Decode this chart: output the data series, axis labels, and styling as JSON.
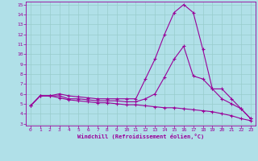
{
  "xlabel": "Windchill (Refroidissement éolien,°C)",
  "background_color": "#b0e0e8",
  "line_color": "#990099",
  "grid_color": "#99cccc",
  "xlim": [
    -0.5,
    23.5
  ],
  "ylim": [
    2.8,
    15.3
  ],
  "yticks": [
    3,
    4,
    5,
    6,
    7,
    8,
    9,
    10,
    11,
    12,
    13,
    14,
    15
  ],
  "xticks": [
    0,
    1,
    2,
    3,
    4,
    5,
    6,
    7,
    8,
    9,
    10,
    11,
    12,
    13,
    14,
    15,
    16,
    17,
    18,
    19,
    20,
    21,
    22,
    23
  ],
  "line1_x": [
    0,
    1,
    2,
    3,
    4,
    5,
    6,
    7,
    8,
    9,
    10,
    11,
    12,
    13,
    14,
    15,
    16,
    17,
    18,
    19,
    20,
    21,
    22,
    23
  ],
  "line1_y": [
    4.8,
    5.8,
    5.8,
    6.0,
    5.8,
    5.7,
    5.6,
    5.5,
    5.5,
    5.5,
    5.5,
    5.5,
    7.5,
    9.5,
    12.0,
    14.2,
    15.0,
    14.2,
    10.5,
    6.5,
    5.5,
    5.0,
    4.5,
    3.5
  ],
  "line2_x": [
    0,
    1,
    2,
    3,
    4,
    5,
    6,
    7,
    8,
    9,
    10,
    11,
    12,
    13,
    14,
    15,
    16,
    17,
    18,
    19,
    20,
    21,
    22,
    23
  ],
  "line2_y": [
    4.8,
    5.8,
    5.8,
    5.8,
    5.5,
    5.5,
    5.4,
    5.3,
    5.3,
    5.3,
    5.2,
    5.2,
    5.5,
    6.0,
    7.7,
    9.5,
    10.8,
    7.8,
    7.5,
    6.5,
    6.5,
    5.5,
    4.5,
    3.5
  ],
  "line3_x": [
    0,
    1,
    2,
    3,
    4,
    5,
    6,
    7,
    8,
    9,
    10,
    11,
    12,
    13,
    14,
    15,
    16,
    17,
    18,
    19,
    20,
    21,
    22,
    23
  ],
  "line3_y": [
    4.8,
    5.8,
    5.8,
    5.6,
    5.4,
    5.3,
    5.2,
    5.1,
    5.1,
    5.0,
    4.9,
    4.9,
    4.8,
    4.7,
    4.6,
    4.6,
    4.5,
    4.4,
    4.3,
    4.2,
    4.0,
    3.8,
    3.5,
    3.3
  ]
}
